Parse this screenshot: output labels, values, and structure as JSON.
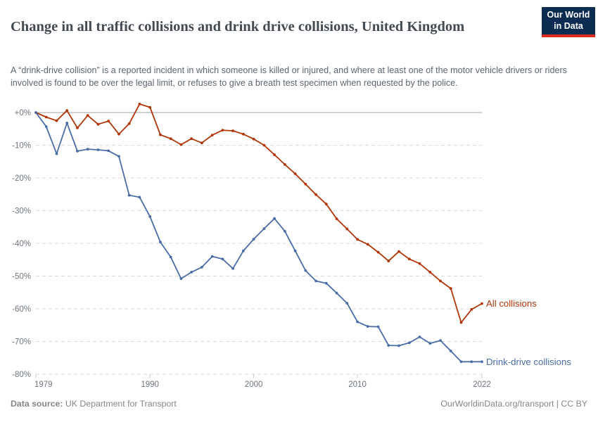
{
  "header": {
    "title": "Change in all traffic collisions and drink drive collisions, United Kingdom",
    "subtitle": "A “drink-drive collision” is a reported incident in which someone is killed or injured, and where at least one of the motor vehicle drivers or riders involved is found to be over the legal limit, or refuses to give a breath test specimen when requested by the police.",
    "logo": {
      "line1": "Our World",
      "line2": "in Data",
      "bg_color": "#0c2c52",
      "stripe_color": "#dc2b1f"
    }
  },
  "footer": {
    "source_label": "Data source:",
    "source_value": " UK Department for Transport",
    "link_text": "OurWorldinData.org/transport",
    "license_text": " | CC BY"
  },
  "chart_data": {
    "type": "line",
    "title": "Change in all traffic collisions and drink drive collisions, United Kingdom",
    "xlabel": "",
    "ylabel": "",
    "xlim": [
      1979,
      2022
    ],
    "ylim": [
      -80,
      0
    ],
    "grid": "horizontal dashed gridlines, solid line at 0%",
    "legend_position": "labels at end of each line",
    "zero_line_color": "#a3a3a3",
    "gridline_color": "#dadada",
    "axis_text_color": "#6e757d",
    "yticks": [
      {
        "value": 0,
        "label": "+0%"
      },
      {
        "value": -10,
        "label": "-10%"
      },
      {
        "value": -20,
        "label": "-20%"
      },
      {
        "value": -30,
        "label": "-30%"
      },
      {
        "value": -40,
        "label": "-40%"
      },
      {
        "value": -50,
        "label": "-50%"
      },
      {
        "value": -60,
        "label": "-60%"
      },
      {
        "value": -70,
        "label": "-70%"
      },
      {
        "value": -80,
        "label": "-80%"
      }
    ],
    "xticks": [
      {
        "value": 1979,
        "label": "1979"
      },
      {
        "value": 1990,
        "label": "1990"
      },
      {
        "value": 2000,
        "label": "2000"
      },
      {
        "value": 2010,
        "label": "2010"
      },
      {
        "value": 2022,
        "label": "2022"
      }
    ],
    "x": [
      1979,
      1980,
      1981,
      1982,
      1983,
      1984,
      1985,
      1986,
      1987,
      1988,
      1989,
      1990,
      1991,
      1992,
      1993,
      1994,
      1995,
      1996,
      1997,
      1998,
      1999,
      2000,
      2001,
      2002,
      2003,
      2004,
      2005,
      2006,
      2007,
      2008,
      2009,
      2010,
      2011,
      2012,
      2013,
      2014,
      2015,
      2016,
      2017,
      2018,
      2019,
      2020,
      2021,
      2022
    ],
    "series": [
      {
        "name": "All collisions",
        "color": "#b13507",
        "values": [
          0,
          -1.4,
          -2.5,
          0.6,
          -4.7,
          -0.9,
          -3.6,
          -2.6,
          -6.6,
          -3.4,
          2.6,
          1.6,
          -6.8,
          -8.0,
          -9.8,
          -8.0,
          -9.3,
          -6.9,
          -5.4,
          -5.6,
          -6.6,
          -8.1,
          -10.0,
          -12.9,
          -15.9,
          -18.7,
          -21.9,
          -25.1,
          -28.0,
          -32.5,
          -35.6,
          -38.8,
          -40.3,
          -42.7,
          -45.4,
          -42.5,
          -44.8,
          -46.2,
          -48.8,
          -51.5,
          -53.8,
          -64.2,
          -60.2,
          -58.4
        ]
      },
      {
        "name": "Drink-drive collisions",
        "color": "#4a6da7",
        "values": [
          0,
          -4.3,
          -12.6,
          -3.2,
          -11.8,
          -11.2,
          -11.4,
          -11.7,
          -13.4,
          -25.3,
          -25.9,
          -31.8,
          -39.6,
          -44.2,
          -50.8,
          -48.8,
          -47.3,
          -44.0,
          -44.8,
          -47.7,
          -42.3,
          -38.7,
          -35.5,
          -32.4,
          -36.3,
          -42.3,
          -48.3,
          -51.5,
          -52.2,
          -55.2,
          -58.3,
          -64.0,
          -65.4,
          -65.5,
          -71.2,
          -71.3,
          -70.4,
          -68.6,
          -70.6,
          -69.7,
          -72.9,
          -76.2,
          -76.2,
          -76.2
        ]
      }
    ]
  }
}
